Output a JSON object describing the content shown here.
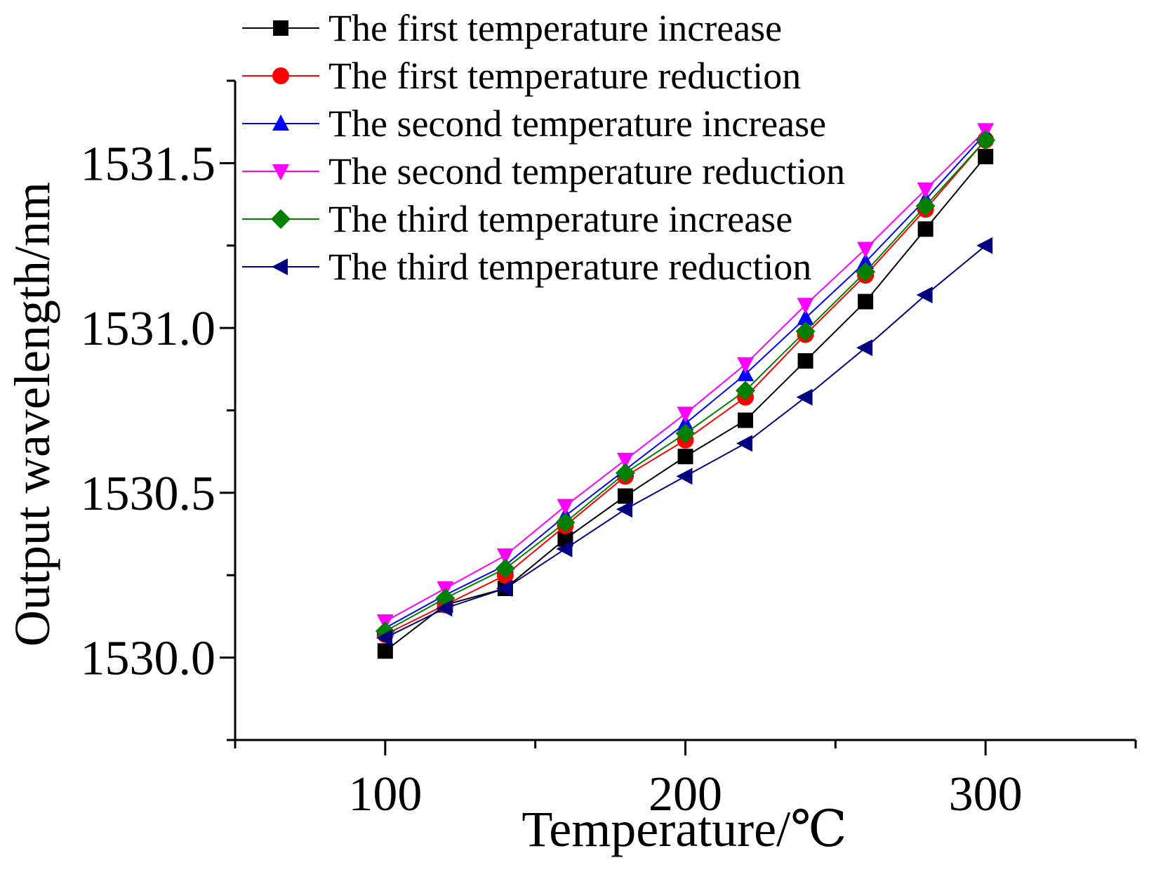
{
  "chart_data": {
    "type": "line",
    "title": "",
    "xlabel": "Temperature/℃",
    "ylabel": "Output wavelength/nm",
    "xlim": [
      50,
      350
    ],
    "ylim": [
      1529.75,
      1531.75
    ],
    "x_ticks": [
      100,
      200,
      300
    ],
    "x_tick_labels": [
      "100",
      "200",
      "300"
    ],
    "x_minor_ticks": [
      50,
      150,
      250,
      350
    ],
    "y_ticks": [
      1530.0,
      1530.5,
      1531.0,
      1531.5
    ],
    "y_tick_labels": [
      "1530.0",
      "1530.5",
      "1531.0",
      "1531.5"
    ],
    "y_minor_ticks": [
      1529.75,
      1530.25,
      1530.75,
      1531.25,
      1531.75
    ],
    "grid": false,
    "legend_position": "top-left",
    "x": [
      100,
      120,
      140,
      160,
      180,
      200,
      220,
      240,
      260,
      280,
      300
    ],
    "series": [
      {
        "name": "The first temperature increase",
        "color": "#000000",
        "marker": "square",
        "values": [
          1530.02,
          1530.16,
          1530.21,
          1530.36,
          1530.49,
          1530.61,
          1530.72,
          1530.9,
          1531.08,
          1531.3,
          1531.52
        ]
      },
      {
        "name": "The first temperature reduction",
        "color": "#ff0000",
        "marker": "circle",
        "values": [
          1530.07,
          1530.16,
          1530.25,
          1530.4,
          1530.55,
          1530.66,
          1530.79,
          1530.98,
          1531.16,
          1531.36,
          1531.57
        ]
      },
      {
        "name": "The second temperature increase",
        "color": "#0000ff",
        "marker": "triangle-up",
        "values": [
          1530.09,
          1530.19,
          1530.28,
          1530.43,
          1530.57,
          1530.71,
          1530.86,
          1531.03,
          1531.2,
          1531.39,
          1531.59
        ]
      },
      {
        "name": "The second temperature reduction",
        "color": "#ff00ff",
        "marker": "triangle-down",
        "values": [
          1530.11,
          1530.21,
          1530.31,
          1530.46,
          1530.6,
          1530.74,
          1530.89,
          1531.07,
          1531.24,
          1531.42,
          1531.6
        ]
      },
      {
        "name": "The third temperature increase",
        "color": "#008000",
        "marker": "diamond",
        "values": [
          1530.08,
          1530.18,
          1530.27,
          1530.41,
          1530.56,
          1530.68,
          1530.81,
          1530.99,
          1531.17,
          1531.37,
          1531.57
        ]
      },
      {
        "name": "The third temperature reduction",
        "color": "#000080",
        "marker": "triangle-left",
        "values": [
          1530.06,
          1530.15,
          1530.21,
          1530.33,
          1530.45,
          1530.55,
          1530.65,
          1530.79,
          1530.94,
          1531.1,
          1531.25
        ]
      }
    ]
  }
}
